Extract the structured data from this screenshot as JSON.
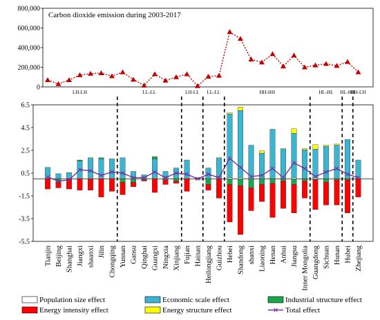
{
  "chart_data": [
    {
      "type": "line",
      "title": "Carbon dioxide emission during 2003-2017",
      "ylim": [
        0,
        800000
      ],
      "y_ticks": [
        "0",
        "200,000",
        "400,000",
        "600,000",
        "800,000"
      ],
      "y_tick_values": [
        0,
        200000,
        400000,
        600000,
        800000
      ],
      "categories": [
        "Tianjin",
        "Beijing",
        "Shanghai",
        "Jiangxi",
        "shaanxi",
        "Jilin",
        "Chongqing",
        "Yunnan",
        "Gansu",
        "Qinghai",
        "Guangxi",
        "Ningxia",
        "Xinjiang",
        "Fujian",
        "Hainan",
        "Heilongjiang",
        "Guizhou",
        "Hebei",
        "Shandong",
        "shanxi",
        "Liaoning",
        "Henan",
        "Anhui",
        "Jiangsu",
        "Inner Mongolia",
        "Guangdong",
        "Sichuan",
        "Hunan",
        "Hubei",
        "Zhejiang"
      ],
      "values": [
        70000,
        30000,
        70000,
        120000,
        135000,
        140000,
        110000,
        150000,
        75000,
        15000,
        130000,
        65000,
        100000,
        130000,
        10000,
        105000,
        115000,
        560000,
        490000,
        280000,
        250000,
        335000,
        210000,
        320000,
        200000,
        220000,
        235000,
        215000,
        255000,
        150000
      ],
      "color": "#c00000",
      "group_labels": [
        "LH-LH",
        "LL-LL",
        "LH-LL",
        "LL-LL",
        "HH-HH",
        "HL-HL",
        "HL-HH",
        "HH-LH"
      ]
    },
    {
      "type": "bar",
      "stacked": true,
      "ylim": [
        -5.5,
        6.5
      ],
      "y_ticks": [
        "6.5",
        "4.5",
        "2.5",
        "0.5",
        "-1.5",
        "-3.5",
        "-5.5"
      ],
      "y_tick_values": [
        6.5,
        4.5,
        2.5,
        0.5,
        -1.5,
        -3.5,
        -5.5
      ],
      "categories": [
        "Tianjin",
        "Beijing",
        "Shanghai",
        "Jiangxi",
        "shaanxi",
        "Jilin",
        "Chongqing",
        "Yunnan",
        "Gansu",
        "Qinghai",
        "Guangxi",
        "Ningxia",
        "Xinjiang",
        "Fujian",
        "Hainan",
        "Heilongjiang",
        "Guizhou",
        "Hebei",
        "Shandong",
        "shanxi",
        "Liaoning",
        "Henan",
        "Anhui",
        "Jiangsu",
        "Inner Mongolia",
        "Guangdong",
        "Sichuan",
        "Hunan",
        "Hubei",
        "Zhejiang"
      ],
      "series": [
        {
          "name": "Population size effect",
          "color": "#ffffff",
          "values": [
            0.05,
            0.05,
            0.05,
            0.05,
            0.05,
            0.05,
            0.05,
            0.05,
            0.05,
            0.05,
            0.05,
            0.05,
            0.05,
            0.05,
            0.05,
            0.05,
            0.05,
            0.1,
            0.1,
            0.05,
            0.05,
            0.05,
            0.05,
            0.1,
            0.05,
            0.1,
            0.05,
            0.05,
            0.05,
            0.05
          ]
        },
        {
          "name": "Economic scale effect",
          "color": "#3cb6d0",
          "values": [
            0.95,
            0.4,
            0.5,
            1.5,
            1.8,
            1.7,
            1.7,
            1.8,
            0.6,
            0.3,
            1.7,
            0.6,
            0.9,
            1.6,
            0.05,
            0.9,
            1.8,
            5.6,
            5.9,
            2.9,
            2.2,
            4.3,
            2.6,
            3.9,
            2.5,
            2.5,
            2.8,
            2.9,
            3.4,
            1.6
          ]
        },
        {
          "name": "Industrial structure effect",
          "color": "#1aa64a",
          "values": [
            0,
            -0.3,
            0,
            0.1,
            0,
            0.1,
            0,
            -0.3,
            -0.3,
            -0.1,
            0.2,
            -0.1,
            -0.2,
            0,
            0,
            -0.5,
            0,
            -0.5,
            -0.6,
            -0.8,
            -0.5,
            -0.4,
            -0.2,
            -0.5,
            -0.2,
            -0.1,
            -0.3,
            -0.1,
            -0.1,
            0
          ]
        },
        {
          "name": "Energy structure effect",
          "color": "#ffff00",
          "values": [
            0,
            0,
            0,
            0,
            0,
            0,
            0,
            0,
            0,
            0,
            0,
            0,
            0,
            0,
            0,
            0,
            0,
            0.1,
            0.3,
            0,
            0.2,
            0,
            0,
            0.4,
            0.1,
            0.4,
            0.1,
            0.1,
            0,
            0
          ]
        },
        {
          "name": "Energy intensity effect",
          "color": "#ff0000",
          "values": [
            -0.9,
            -0.5,
            -0.9,
            -1.0,
            -1.0,
            -1.6,
            -1.1,
            -1.1,
            -0.4,
            -0.1,
            -1.2,
            -0.4,
            -0.2,
            -1.1,
            -0.05,
            -0.5,
            -1.7,
            -3.3,
            -4.3,
            -2.0,
            -1.5,
            -3.0,
            -2.4,
            -2.5,
            -1.5,
            -2.6,
            -2.0,
            -2.2,
            -2.9,
            -1.6
          ]
        },
        {
          "name": "Total effect",
          "color": "#7030a0",
          "type": "line",
          "values": [
            0.15,
            -0.2,
            -0.1,
            0.8,
            0.7,
            0.3,
            0.6,
            0.5,
            0.1,
            0.1,
            0.6,
            0.1,
            0.5,
            0.4,
            0,
            0.4,
            0.1,
            1.8,
            1.0,
            0.2,
            0.3,
            0.9,
            0.1,
            1.4,
            0.9,
            0.2,
            0.6,
            0.9,
            0.4,
            0.1
          ]
        }
      ],
      "legend_position": "bottom"
    }
  ]
}
